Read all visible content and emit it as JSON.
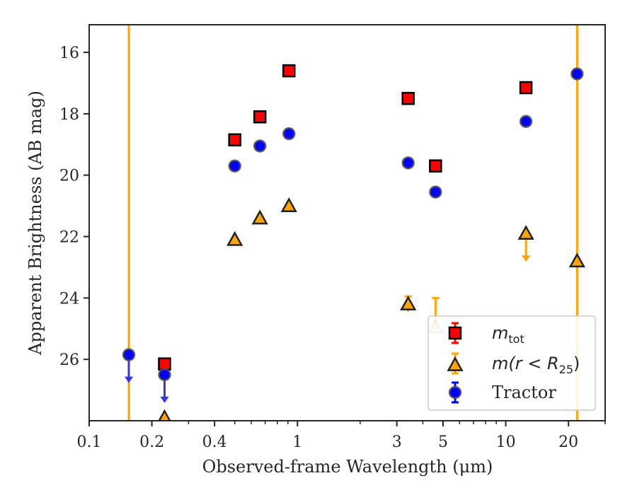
{
  "chart_data": {
    "type": "scatter",
    "xlabel": "Observed-frame Wavelength (μm)",
    "ylabel": "Apparent Brightness (AB mag)",
    "xscale": "log",
    "xlim": [
      0.1,
      30
    ],
    "ylim": [
      28,
      15.1
    ],
    "y_inverted": true,
    "x_ticks": [
      0.1,
      0.2,
      0.4,
      1,
      3,
      5,
      10,
      20
    ],
    "x_tick_labels": [
      "0.1",
      "0.2",
      "0.4",
      "1",
      "3",
      "5",
      "10",
      "20"
    ],
    "y_ticks": [
      16,
      18,
      20,
      22,
      24,
      26
    ],
    "y_tick_labels": [
      "16",
      "18",
      "20",
      "22",
      "24",
      "26"
    ],
    "grid": false,
    "legend_position": "lower-right",
    "series": [
      {
        "name": "m_tot",
        "legend_main": "m",
        "legend_sub": "tot",
        "marker": "square",
        "color": "#ff0000",
        "edge_color": "#000000",
        "points": [
          {
            "x": 0.23,
            "y": 26.15
          },
          {
            "x": 0.5,
            "y": 18.85
          },
          {
            "x": 0.66,
            "y": 18.1
          },
          {
            "x": 0.91,
            "y": 16.6
          },
          {
            "x": 3.4,
            "y": 17.5
          },
          {
            "x": 4.6,
            "y": 19.7
          },
          {
            "x": 12.5,
            "y": 17.15
          }
        ]
      },
      {
        "name": "m(r<R25)",
        "legend_main": "m(r < R",
        "legend_sub": "25",
        "legend_close": ")",
        "marker": "triangle",
        "color": "#ffa500",
        "edge_color": "#222222",
        "points": [
          {
            "x": 0.23,
            "y": 27.9
          },
          {
            "x": 0.5,
            "y": 22.1
          },
          {
            "x": 0.66,
            "y": 21.4
          },
          {
            "x": 0.91,
            "y": 21.0
          },
          {
            "x": 3.4,
            "y": 24.2,
            "err": 0.25
          },
          {
            "x": 4.6,
            "y": 24.95,
            "faded": true,
            "err_low": 24.0
          },
          {
            "x": 12.5,
            "y": 21.9,
            "upper_limit": true
          },
          {
            "x": 22,
            "y": 22.8
          }
        ]
      },
      {
        "name": "Tractor",
        "marker": "circle",
        "color": "#0000ff",
        "edge_color": "#555555",
        "points": [
          {
            "x": 0.155,
            "y": 25.85,
            "upper_limit": true
          },
          {
            "x": 0.23,
            "y": 26.5,
            "upper_limit": true
          },
          {
            "x": 0.5,
            "y": 19.7
          },
          {
            "x": 0.66,
            "y": 19.05
          },
          {
            "x": 0.91,
            "y": 18.65
          },
          {
            "x": 3.4,
            "y": 19.6
          },
          {
            "x": 4.6,
            "y": 20.55
          },
          {
            "x": 12.5,
            "y": 18.25
          },
          {
            "x": 22,
            "y": 16.7
          }
        ]
      }
    ],
    "vertical_lines": [
      {
        "x": 0.155,
        "color": "#ffa500"
      },
      {
        "x": 22,
        "color": "#ffa500"
      }
    ]
  }
}
